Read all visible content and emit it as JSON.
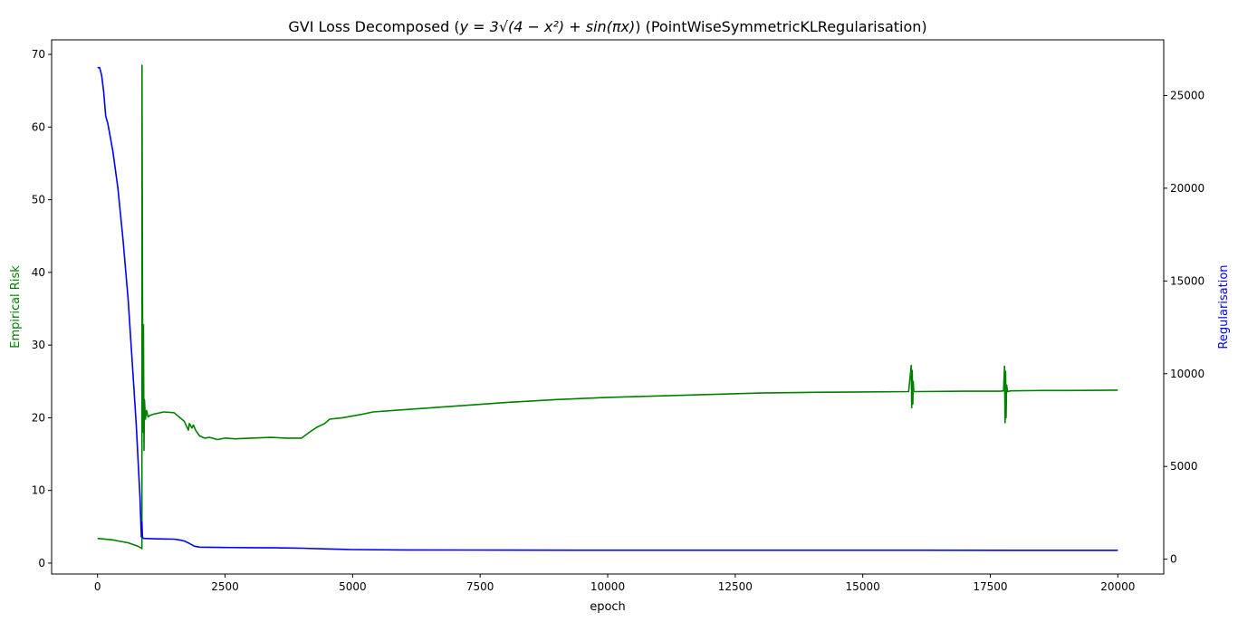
{
  "chart_data": {
    "type": "line",
    "title_prefix": "GVI Loss Decomposed (",
    "title_math": "y = 3√(4 − x²) + sin(πx)",
    "title_suffix": ") (PointWiseSymmetricKLRegularisation)",
    "xlabel": "epoch",
    "ylabel_left": "Empirical Risk",
    "ylabel_right": "Regularisation",
    "xlim": [
      -900,
      20900
    ],
    "ylim_left": [
      -1.5,
      72
    ],
    "ylim_right": [
      -800,
      28000
    ],
    "xticks": [
      0,
      2500,
      5000,
      7500,
      10000,
      12500,
      15000,
      17500,
      20000
    ],
    "yticks_left": [
      0,
      10,
      20,
      30,
      40,
      50,
      60,
      70
    ],
    "yticks_right": [
      0,
      5000,
      10000,
      15000,
      20000,
      25000
    ],
    "grid": false,
    "colors": {
      "empirical_risk": "#008000",
      "regularisation": "#0000ff",
      "axes": "#000000"
    },
    "series": [
      {
        "axis": "left",
        "x": [
          0,
          300,
          600,
          800,
          870,
          872,
          880,
          890,
          900,
          910,
          920,
          940,
          960,
          990,
          1020,
          1100,
          1300,
          1500,
          1700,
          1780,
          1800,
          1850,
          1880,
          1920,
          2000,
          2100,
          2200,
          2350,
          2500,
          2700,
          3000,
          3400,
          3700,
          4000,
          4150,
          4300,
          4450,
          4550,
          4800,
          5200,
          5400,
          6000,
          7000,
          8000,
          9000,
          10000,
          11000,
          12000,
          13000,
          14000,
          15000,
          15900,
          15950,
          15960,
          15970,
          15980,
          15990,
          16000,
          16020,
          16100,
          17000,
          17700,
          17760,
          17780,
          17790,
          17800,
          17810,
          17820,
          17840,
          17900,
          18500,
          19000,
          20000
        ],
        "y": [
          3.4,
          3.2,
          2.8,
          2.3,
          2.0,
          68.5,
          40,
          18,
          32.8,
          15.5,
          22.5,
          19.8,
          21,
          20.1,
          20.3,
          20.5,
          20.8,
          20.7,
          19.5,
          18.3,
          19.2,
          18.6,
          19.0,
          18.3,
          17.5,
          17.2,
          17.3,
          17.0,
          17.2,
          17.1,
          17.2,
          17.3,
          17.2,
          17.2,
          18.0,
          18.7,
          19.2,
          19.8,
          20.0,
          20.5,
          20.8,
          21.1,
          21.6,
          22.1,
          22.5,
          22.8,
          23.0,
          23.2,
          23.4,
          23.5,
          23.55,
          23.6,
          27.2,
          21.4,
          26.5,
          21.9,
          25.0,
          23.6,
          23.6,
          23.6,
          23.65,
          23.65,
          23.7,
          27.1,
          19.3,
          26.4,
          20.0,
          24.5,
          23.6,
          23.7,
          23.75,
          23.75,
          23.8
        ]
      },
      {
        "axis": "right",
        "x": [
          0,
          40,
          80,
          120,
          160,
          200,
          300,
          400,
          500,
          600,
          700,
          760,
          800,
          830,
          860,
          870,
          880,
          900,
          1100,
          1300,
          1500,
          1600,
          1700,
          1800,
          1900,
          2000,
          2500,
          3000,
          3500,
          3800,
          4000,
          4500,
          5000,
          6000,
          8000,
          10000,
          12000,
          14000,
          16000,
          18000,
          20000
        ],
        "y": [
          26500,
          26500,
          26100,
          25200,
          23900,
          23500,
          22000,
          20000,
          17200,
          14000,
          9800,
          7200,
          5000,
          3400,
          1200,
          2000,
          1200,
          1120,
          1100,
          1090,
          1080,
          1040,
          980,
          850,
          700,
          650,
          630,
          620,
          610,
          600,
          590,
          550,
          520,
          500,
          490,
          485,
          485,
          485,
          485,
          480,
          480
        ]
      }
    ]
  }
}
